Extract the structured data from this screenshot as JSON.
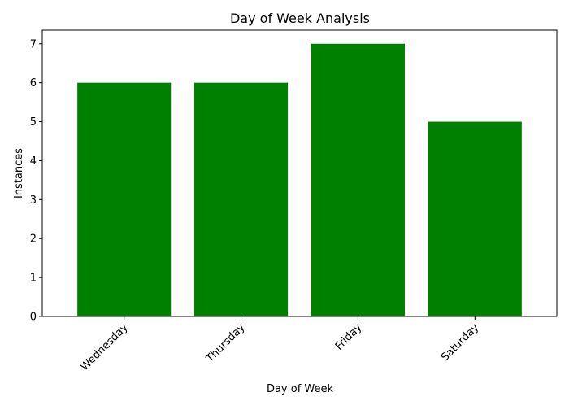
{
  "chart_data": {
    "type": "bar",
    "title": "Day of Week Analysis",
    "xlabel": "Day of Week",
    "ylabel": "Instances",
    "categories": [
      "Wednesday",
      "Thursday",
      "Friday",
      "Saturday"
    ],
    "values": [
      6,
      6,
      7,
      5
    ],
    "ylim": [
      0,
      7.35
    ],
    "yticks": [
      0,
      1,
      2,
      3,
      4,
      5,
      6,
      7
    ],
    "xtick_rotation_deg": 45,
    "grid": false,
    "legend": "none",
    "bar_color": "#008000"
  }
}
